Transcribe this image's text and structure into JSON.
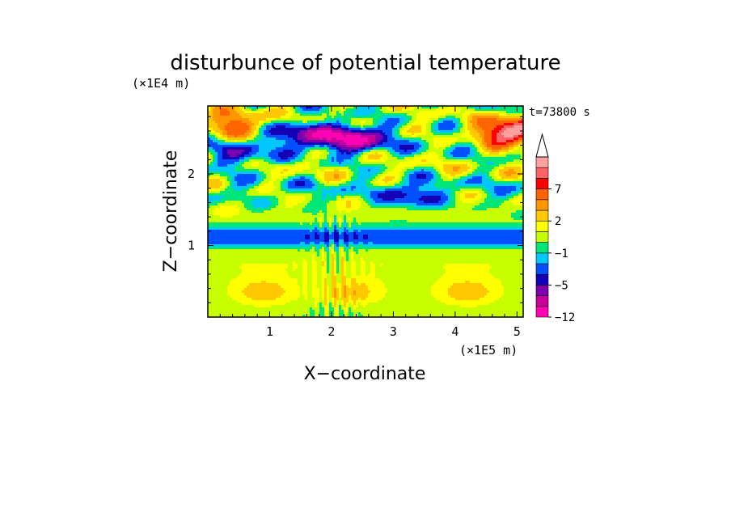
{
  "chart_data": {
    "type": "heatmap",
    "title": "disturbunce of potential temperature",
    "xlabel": "X−coordinate",
    "ylabel": "Z−coordinate",
    "x_scale_label": "(×1E5 m)",
    "y_scale_label": "(×1E4 m)",
    "time_label": "t=73800 s",
    "xlim": [
      0,
      5.1
    ],
    "ylim": [
      0,
      2.95
    ],
    "x_ticks": [
      {
        "value": 1,
        "label": "1"
      },
      {
        "value": 2,
        "label": "2"
      },
      {
        "value": 3,
        "label": "3"
      },
      {
        "value": 4,
        "label": "4"
      },
      {
        "value": 5,
        "label": "5"
      }
    ],
    "y_ticks": [
      {
        "value": 1,
        "label": "1"
      },
      {
        "value": 2,
        "label": "2"
      }
    ],
    "colorbar": {
      "levels_bottom_to_top": [
        {
          "color": "#ff00b4"
        },
        {
          "color": "#c8009b"
        },
        {
          "color": "#7d00af"
        },
        {
          "color": "#1400b4"
        },
        {
          "color": "#0050ff"
        },
        {
          "color": "#00c8ff"
        },
        {
          "color": "#00e678"
        },
        {
          "color": "#c8ff00"
        },
        {
          "color": "#ffff00"
        },
        {
          "color": "#ffc800"
        },
        {
          "color": "#ff9600"
        },
        {
          "color": "#ff6400"
        },
        {
          "color": "#ff0000"
        },
        {
          "color": "#ff6464"
        },
        {
          "color": "#ffa0a0"
        }
      ],
      "tick_labels": [
        {
          "label": "−12",
          "boundary": 0
        },
        {
          "label": "−5",
          "boundary": 3
        },
        {
          "label": "−1",
          "boundary": 6
        },
        {
          "label": "2",
          "boundary": 9
        },
        {
          "label": "7",
          "boundary": 12
        }
      ],
      "extend": "max"
    },
    "field_features": [
      {
        "x": 0.9,
        "z": 0.35,
        "amp": 2.5
      },
      {
        "x": 2.3,
        "z": 0.35,
        "amp": 2.5
      },
      {
        "x": 4.2,
        "z": 0.35,
        "amp": 2.5
      },
      {
        "x": 2.4,
        "z": 2.5,
        "amp": -9
      },
      {
        "x": 1.6,
        "z": 2.55,
        "amp": -7
      },
      {
        "x": 0.55,
        "z": 2.25,
        "amp": -4
      },
      {
        "x": 3.3,
        "z": 1.7,
        "amp": -4
      },
      {
        "x": 5.0,
        "z": 2.6,
        "amp": 9
      },
      {
        "x": 0.4,
        "z": 2.7,
        "amp": 6
      },
      {
        "x": 4.7,
        "z": 2.55,
        "amp": 5
      }
    ]
  }
}
